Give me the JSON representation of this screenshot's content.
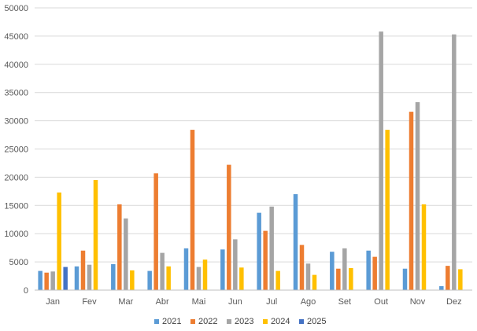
{
  "chart_data": {
    "type": "bar",
    "title": "",
    "xlabel": "",
    "ylabel": "",
    "ylim": [
      0,
      50000
    ],
    "yticks": [
      0,
      5000,
      10000,
      15000,
      20000,
      25000,
      30000,
      35000,
      40000,
      45000,
      50000
    ],
    "grid": true,
    "legend_position": "bottom",
    "categories": [
      "Jan",
      "Fev",
      "Mar",
      "Abr",
      "Mai",
      "Jun",
      "Jul",
      "Ago",
      "Set",
      "Out",
      "Nov",
      "Dez"
    ],
    "series": [
      {
        "name": "2021",
        "color": "#5B9BD5",
        "values": [
          3400,
          4200,
          4600,
          3400,
          7400,
          7200,
          13700,
          17000,
          6800,
          7000,
          3800,
          700
        ]
      },
      {
        "name": "2022",
        "color": "#ED7D31",
        "values": [
          3100,
          7000,
          15200,
          20700,
          28400,
          22200,
          10500,
          8000,
          3800,
          5900,
          31600,
          4300
        ]
      },
      {
        "name": "2023",
        "color": "#A5A5A5",
        "values": [
          3300,
          4500,
          12700,
          6600,
          4100,
          9000,
          14800,
          4700,
          7400,
          45800,
          33300,
          45300
        ]
      },
      {
        "name": "2024",
        "color": "#FFC000",
        "values": [
          17300,
          19500,
          3500,
          4200,
          5400,
          4000,
          3400,
          2700,
          3900,
          28400,
          15200,
          3700
        ]
      },
      {
        "name": "2025",
        "color": "#4472C4",
        "values": [
          4100,
          null,
          null,
          null,
          null,
          null,
          null,
          null,
          null,
          null,
          null,
          null
        ]
      }
    ]
  }
}
